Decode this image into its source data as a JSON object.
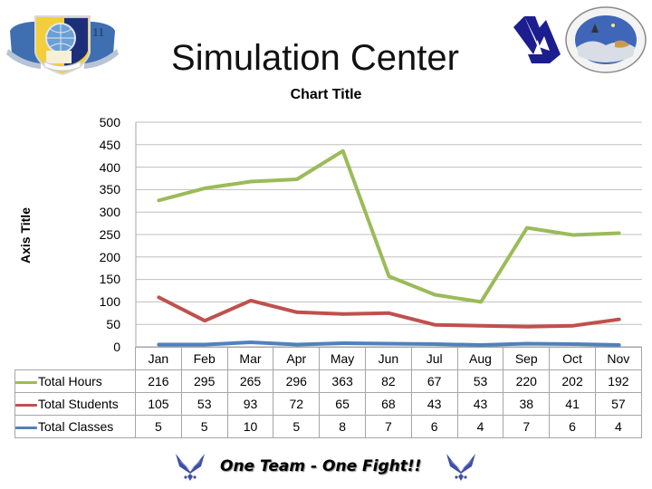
{
  "slide": {
    "title": "Simulation Center",
    "footer_text": "One Team - One Fight!!"
  },
  "logos": {
    "left": "673d-air-base-wing-shield-logo",
    "right_1": "va-logo",
    "right_2": "arctic-warriors-seal-logo",
    "footer": "air-force-symbol"
  },
  "colors": {
    "total_hours": "#9bbb59",
    "total_students": "#c0504d",
    "total_classes": "#4f81bd",
    "gridline": "#bfbfbf",
    "table_border": "#a6a6a6"
  },
  "chart_data": {
    "type": "line",
    "stacked": true,
    "title": "Chart Title",
    "xlabel": "",
    "ylabel": "Axis Title",
    "ylim": [
      0,
      500
    ],
    "yticks": [
      "500",
      "450",
      "400",
      "350",
      "300",
      "250",
      "200",
      "150",
      "100",
      "50",
      "0"
    ],
    "grid": true,
    "legend_position": "data-table",
    "categories": [
      "Jan",
      "Feb",
      "Mar",
      "Apr",
      "May",
      "Jun",
      "Jul",
      "Aug",
      "Sep",
      "Oct",
      "Nov"
    ],
    "series": [
      {
        "name": "Total Hours",
        "color": "#9bbb59",
        "values": [
          216,
          295,
          265,
          296,
          363,
          82,
          67,
          53,
          220,
          202,
          192
        ]
      },
      {
        "name": "Total Students",
        "color": "#c0504d",
        "values": [
          105,
          53,
          93,
          72,
          65,
          68,
          43,
          43,
          38,
          41,
          57
        ]
      },
      {
        "name": "Total Classes",
        "color": "#4f81bd",
        "values": [
          5,
          5,
          10,
          5,
          8,
          7,
          6,
          4,
          7,
          6,
          4
        ]
      }
    ]
  }
}
